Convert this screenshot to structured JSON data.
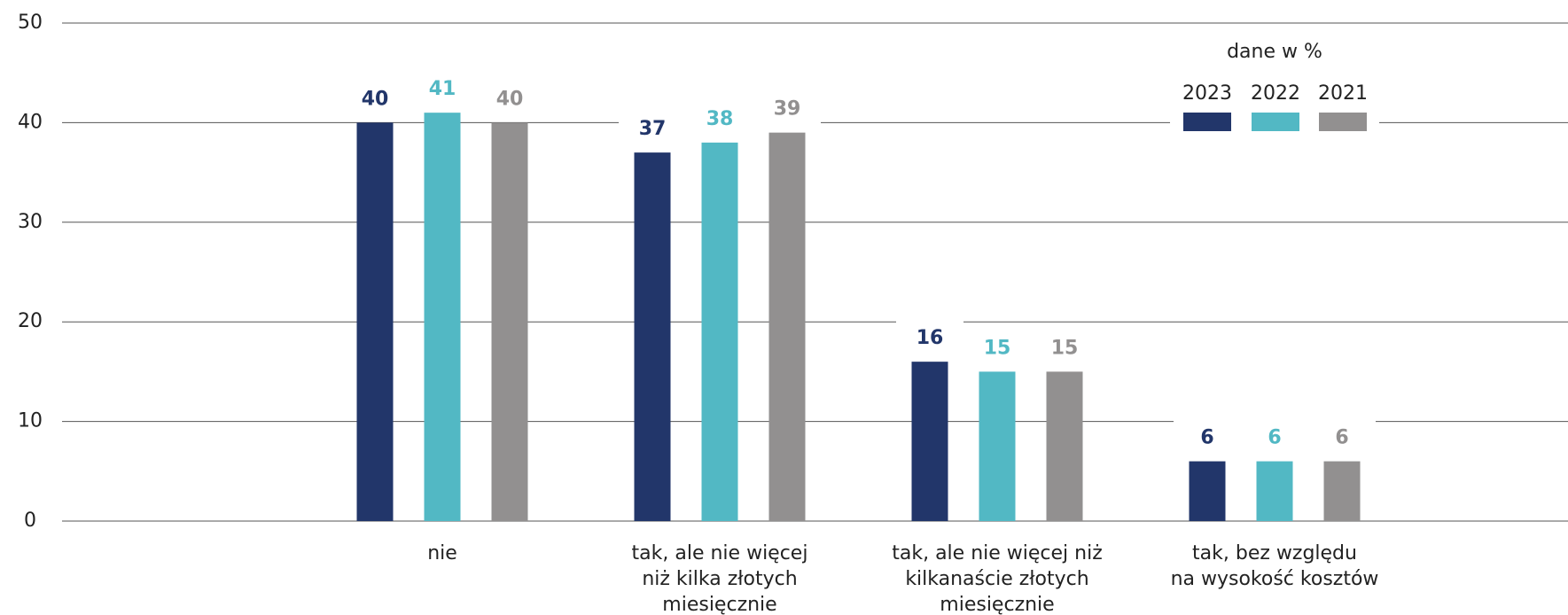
{
  "chart_data": {
    "type": "bar",
    "subtitle": "dane w %",
    "categories": [
      "nie",
      "tak, ale nie więcej\nniż kilka złotych\nmiesięcznie",
      "tak, ale nie więcej niż\nkilkanaście złotych\nmiesięcznie",
      "tak, bez względu\nna wysokość kosztów"
    ],
    "series": [
      {
        "name": "2023",
        "color": "#22366a",
        "values": [
          40,
          37,
          16,
          6
        ]
      },
      {
        "name": "2022",
        "color": "#52b8c4",
        "values": [
          41,
          38,
          15,
          6
        ]
      },
      {
        "name": "2021",
        "color": "#929090",
        "values": [
          40,
          39,
          15,
          6
        ]
      }
    ],
    "ylim": [
      0,
      50
    ],
    "yticks": [
      0,
      10,
      20,
      30,
      40,
      50
    ],
    "grid": true
  }
}
